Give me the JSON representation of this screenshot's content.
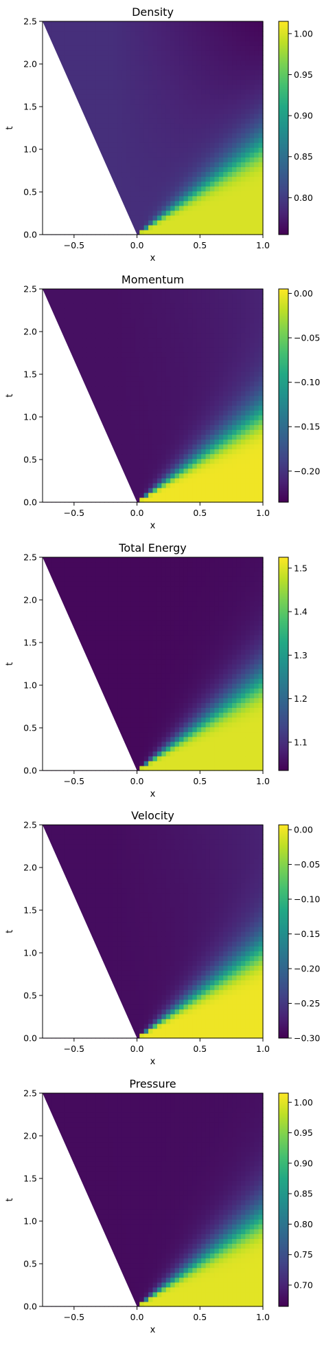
{
  "colormap": "viridis",
  "chart_data": [
    {
      "type": "heatmap",
      "title": "Density",
      "xlabel": "x",
      "ylabel": "t",
      "xlim": [
        -0.75,
        1.0
      ],
      "ylim": [
        0.0,
        2.5
      ],
      "x_ticks": [
        "−0.5",
        "0.0",
        "0.5",
        "1.0"
      ],
      "x_tick_values": [
        -0.5,
        0.0,
        0.5,
        1.0
      ],
      "y_ticks": [
        "0.0",
        "0.5",
        "1.0",
        "1.5",
        "2.0",
        "2.5"
      ],
      "y_tick_values": [
        0.0,
        0.5,
        1.0,
        1.5,
        2.0,
        2.5
      ],
      "colorbar_range": [
        0.755,
        1.015
      ],
      "colorbar_ticks": [
        "0.80",
        "0.85",
        "0.90",
        "0.95",
        "1.00"
      ],
      "colorbar_tick_values": [
        0.8,
        0.85,
        0.9,
        0.95,
        1.0
      ],
      "left_state_value": 0.79,
      "right_state_value": 1.0,
      "far_corner_value": 0.755
    },
    {
      "type": "heatmap",
      "title": "Momentum",
      "xlabel": "x",
      "ylabel": "t",
      "xlim": [
        -0.75,
        1.0
      ],
      "ylim": [
        0.0,
        2.5
      ],
      "x_ticks": [
        "−0.5",
        "0.0",
        "0.5",
        "1.0"
      ],
      "x_tick_values": [
        -0.5,
        0.0,
        0.5,
        1.0
      ],
      "y_ticks": [
        "0.0",
        "0.5",
        "1.0",
        "1.5",
        "2.0",
        "2.5"
      ],
      "y_tick_values": [
        0.0,
        0.5,
        1.0,
        1.5,
        2.0,
        2.5
      ],
      "colorbar_range": [
        -0.235,
        0.005
      ],
      "colorbar_ticks": [
        "−0.20",
        "−0.15",
        "−0.10",
        "−0.05",
        "0.00"
      ],
      "colorbar_tick_values": [
        -0.2,
        -0.15,
        -0.1,
        -0.05,
        0.0
      ],
      "left_state_value": -0.225,
      "right_state_value": 0.0,
      "far_corner_value": -0.215
    },
    {
      "type": "heatmap",
      "title": "Total Energy",
      "xlabel": "x",
      "ylabel": "t",
      "xlim": [
        -0.75,
        1.0
      ],
      "ylim": [
        0.0,
        2.5
      ],
      "x_ticks": [
        "−0.5",
        "0.0",
        "0.5",
        "1.0"
      ],
      "x_tick_values": [
        -0.5,
        0.0,
        0.5,
        1.0
      ],
      "y_ticks": [
        "0.0",
        "0.5",
        "1.0",
        "1.5",
        "2.0",
        "2.5"
      ],
      "y_tick_values": [
        0.0,
        0.5,
        1.0,
        1.5,
        2.0,
        2.5
      ],
      "colorbar_range": [
        1.035,
        1.525
      ],
      "colorbar_ticks": [
        "1.1",
        "1.2",
        "1.3",
        "1.4",
        "1.5"
      ],
      "colorbar_tick_values": [
        1.1,
        1.2,
        1.3,
        1.4,
        1.5
      ],
      "left_state_value": 1.045,
      "right_state_value": 1.5,
      "far_corner_value": 1.045
    },
    {
      "type": "heatmap",
      "title": "Velocity",
      "xlabel": "x",
      "ylabel": "t",
      "xlim": [
        -0.75,
        1.0
      ],
      "ylim": [
        0.0,
        2.5
      ],
      "x_ticks": [
        "−0.5",
        "0.0",
        "0.5",
        "1.0"
      ],
      "x_tick_values": [
        -0.5,
        0.0,
        0.5,
        1.0
      ],
      "y_ticks": [
        "0.0",
        "0.5",
        "1.0",
        "1.5",
        "2.0",
        "2.5"
      ],
      "y_tick_values": [
        0.0,
        0.5,
        1.0,
        1.5,
        2.0,
        2.5
      ],
      "colorbar_range": [
        -0.3,
        0.007
      ],
      "colorbar_ticks": [
        "−0.30",
        "−0.25",
        "−0.20",
        "−0.15",
        "−0.10",
        "−0.05",
        "0.00"
      ],
      "colorbar_tick_values": [
        -0.3,
        -0.25,
        -0.2,
        -0.15,
        -0.1,
        -0.05,
        0.0
      ],
      "left_state_value": -0.29,
      "right_state_value": 0.0,
      "far_corner_value": -0.275
    },
    {
      "type": "heatmap",
      "title": "Pressure",
      "xlabel": "x",
      "ylabel": "t",
      "xlim": [
        -0.75,
        1.0
      ],
      "ylim": [
        0.0,
        2.5
      ],
      "x_ticks": [
        "−0.5",
        "0.0",
        "0.5",
        "1.0"
      ],
      "x_tick_values": [
        -0.5,
        0.0,
        0.5,
        1.0
      ],
      "y_ticks": [
        "0.0",
        "0.5",
        "1.0",
        "1.5",
        "2.0",
        "2.5"
      ],
      "y_tick_values": [
        0.0,
        0.5,
        1.0,
        1.5,
        2.0,
        2.5
      ],
      "colorbar_range": [
        0.665,
        1.015
      ],
      "colorbar_ticks": [
        "0.70",
        "0.75",
        "0.80",
        "0.85",
        "0.90",
        "0.95",
        "1.00"
      ],
      "colorbar_tick_values": [
        0.7,
        0.75,
        0.8,
        0.85,
        0.9,
        0.95,
        1.0
      ],
      "left_state_value": 0.675,
      "right_state_value": 1.0,
      "far_corner_value": 0.675
    }
  ]
}
